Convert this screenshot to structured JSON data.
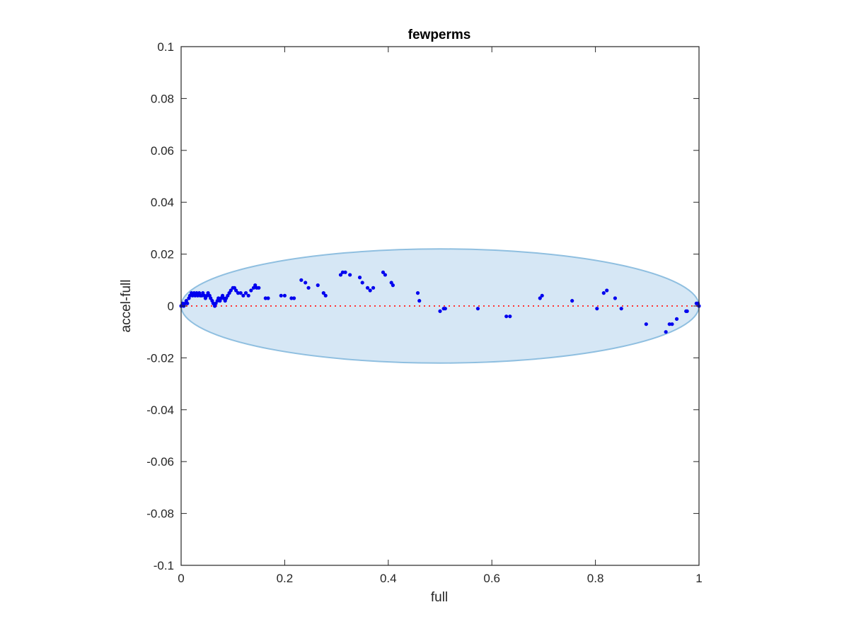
{
  "chart_data": {
    "type": "scatter",
    "title": "fewperms",
    "xlabel": "full",
    "ylabel": "accel-full",
    "xlim": [
      0,
      1
    ],
    "ylim": [
      -0.1,
      0.1
    ],
    "xticks": [
      "0",
      "0.2",
      "0.4",
      "0.6",
      "0.8",
      "1"
    ],
    "yticks": [
      "-0.1",
      "-0.08",
      "-0.06",
      "-0.04",
      "-0.02",
      "0",
      "0.02",
      "0.04",
      "0.06",
      "0.08",
      "0.1"
    ],
    "grid": false,
    "box": true,
    "colors": {
      "points": "#0000ee",
      "ellipse_fill": "#d6e7f5",
      "ellipse_stroke": "#8fbfe0",
      "reference_line": "#ff3333",
      "axes": "#262626"
    },
    "reference_line": {
      "y": 0,
      "style": "dotted"
    },
    "ellipse": {
      "center": [
        0.5,
        0
      ],
      "semi_axis_x": 0.5,
      "semi_axis_y": 0.022
    },
    "x": [
      0.0,
      0.003,
      0.005,
      0.008,
      0.01,
      0.012,
      0.015,
      0.017,
      0.02,
      0.022,
      0.025,
      0.027,
      0.03,
      0.032,
      0.035,
      0.037,
      0.04,
      0.042,
      0.045,
      0.047,
      0.05,
      0.052,
      0.055,
      0.057,
      0.06,
      0.062,
      0.065,
      0.067,
      0.07,
      0.072,
      0.075,
      0.077,
      0.08,
      0.082,
      0.085,
      0.087,
      0.09,
      0.093,
      0.096,
      0.1,
      0.103,
      0.106,
      0.11,
      0.115,
      0.12,
      0.125,
      0.13,
      0.135,
      0.14,
      0.143,
      0.146,
      0.15,
      0.163,
      0.168,
      0.193,
      0.2,
      0.213,
      0.218,
      0.232,
      0.24,
      0.246,
      0.264,
      0.275,
      0.279,
      0.308,
      0.312,
      0.317,
      0.326,
      0.345,
      0.35,
      0.36,
      0.365,
      0.371,
      0.39,
      0.394,
      0.406,
      0.409,
      0.457,
      0.46,
      0.5,
      0.507,
      0.51,
      0.573,
      0.628,
      0.635,
      0.693,
      0.697,
      0.755,
      0.803,
      0.816,
      0.822,
      0.838,
      0.85,
      0.898,
      0.936,
      0.943,
      0.948,
      0.957,
      0.975,
      0.977,
      0.995,
      0.998,
      1.0
    ],
    "y": [
      0.0,
      0.001,
      0.0,
      0.001,
      0.002,
      0.001,
      0.003,
      0.004,
      0.005,
      0.004,
      0.005,
      0.004,
      0.005,
      0.004,
      0.005,
      0.004,
      0.004,
      0.005,
      0.004,
      0.003,
      0.004,
      0.005,
      0.004,
      0.003,
      0.002,
      0.001,
      0.0,
      0.001,
      0.002,
      0.003,
      0.002,
      0.003,
      0.004,
      0.003,
      0.002,
      0.003,
      0.004,
      0.005,
      0.006,
      0.007,
      0.007,
      0.006,
      0.005,
      0.005,
      0.004,
      0.005,
      0.004,
      0.006,
      0.007,
      0.008,
      0.007,
      0.007,
      0.003,
      0.003,
      0.004,
      0.004,
      0.003,
      0.003,
      0.01,
      0.009,
      0.007,
      0.008,
      0.005,
      0.004,
      0.012,
      0.013,
      0.013,
      0.012,
      0.011,
      0.009,
      0.007,
      0.006,
      0.007,
      0.013,
      0.012,
      0.009,
      0.008,
      0.005,
      0.002,
      -0.002,
      -0.001,
      -0.001,
      -0.001,
      -0.004,
      -0.004,
      0.003,
      0.004,
      0.002,
      -0.001,
      0.005,
      0.006,
      0.003,
      -0.001,
      -0.007,
      -0.01,
      -0.007,
      -0.007,
      -0.005,
      -0.002,
      -0.002,
      0.001,
      0.001,
      0.0
    ]
  }
}
